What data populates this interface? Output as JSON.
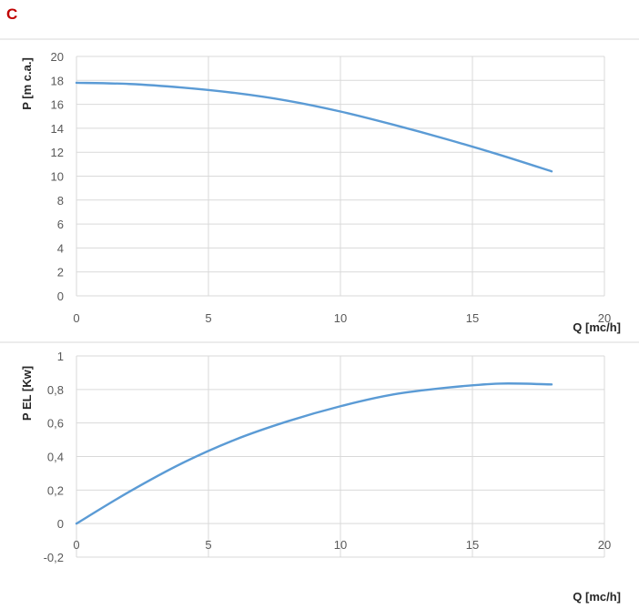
{
  "panel_label": "C",
  "colors": {
    "series": "#5b9bd5",
    "panel_label": "#c00000",
    "grid": "#d9d9d9",
    "tick_text": "#595959"
  },
  "chart_data": [
    {
      "type": "line",
      "xlabel": "Q [mc/h]",
      "ylabel": "P [m c.a.]",
      "xlim": [
        0,
        20
      ],
      "ylim": [
        0,
        20
      ],
      "x_ticks": [
        "0",
        "5",
        "10",
        "15",
        "20"
      ],
      "y_ticks": [
        "0",
        "2",
        "4",
        "6",
        "8",
        "10",
        "12",
        "14",
        "16",
        "18",
        "20"
      ],
      "grid": true,
      "series": [
        {
          "x": [
            0,
            2,
            4,
            6,
            8,
            10,
            12,
            14,
            16,
            18
          ],
          "y": [
            17.8,
            17.7,
            17.4,
            16.95,
            16.3,
            15.4,
            14.3,
            13.1,
            11.8,
            10.4
          ]
        }
      ]
    },
    {
      "type": "line",
      "xlabel": "Q [mc/h]",
      "ylabel": "P EL [Kw]",
      "xlim": [
        0,
        20
      ],
      "ylim": [
        -0.2,
        1
      ],
      "x_ticks": [
        "0",
        "5",
        "10",
        "15",
        "20"
      ],
      "y_ticks": [
        "-0,2",
        "0",
        "0,2",
        "0,4",
        "0,6",
        "0,8",
        "1"
      ],
      "grid": true,
      "series": [
        {
          "x": [
            0,
            2,
            4,
            6,
            8,
            10,
            12,
            14,
            16,
            18
          ],
          "y": [
            0.0,
            0.19,
            0.36,
            0.5,
            0.61,
            0.7,
            0.77,
            0.81,
            0.835,
            0.83
          ]
        }
      ]
    }
  ]
}
